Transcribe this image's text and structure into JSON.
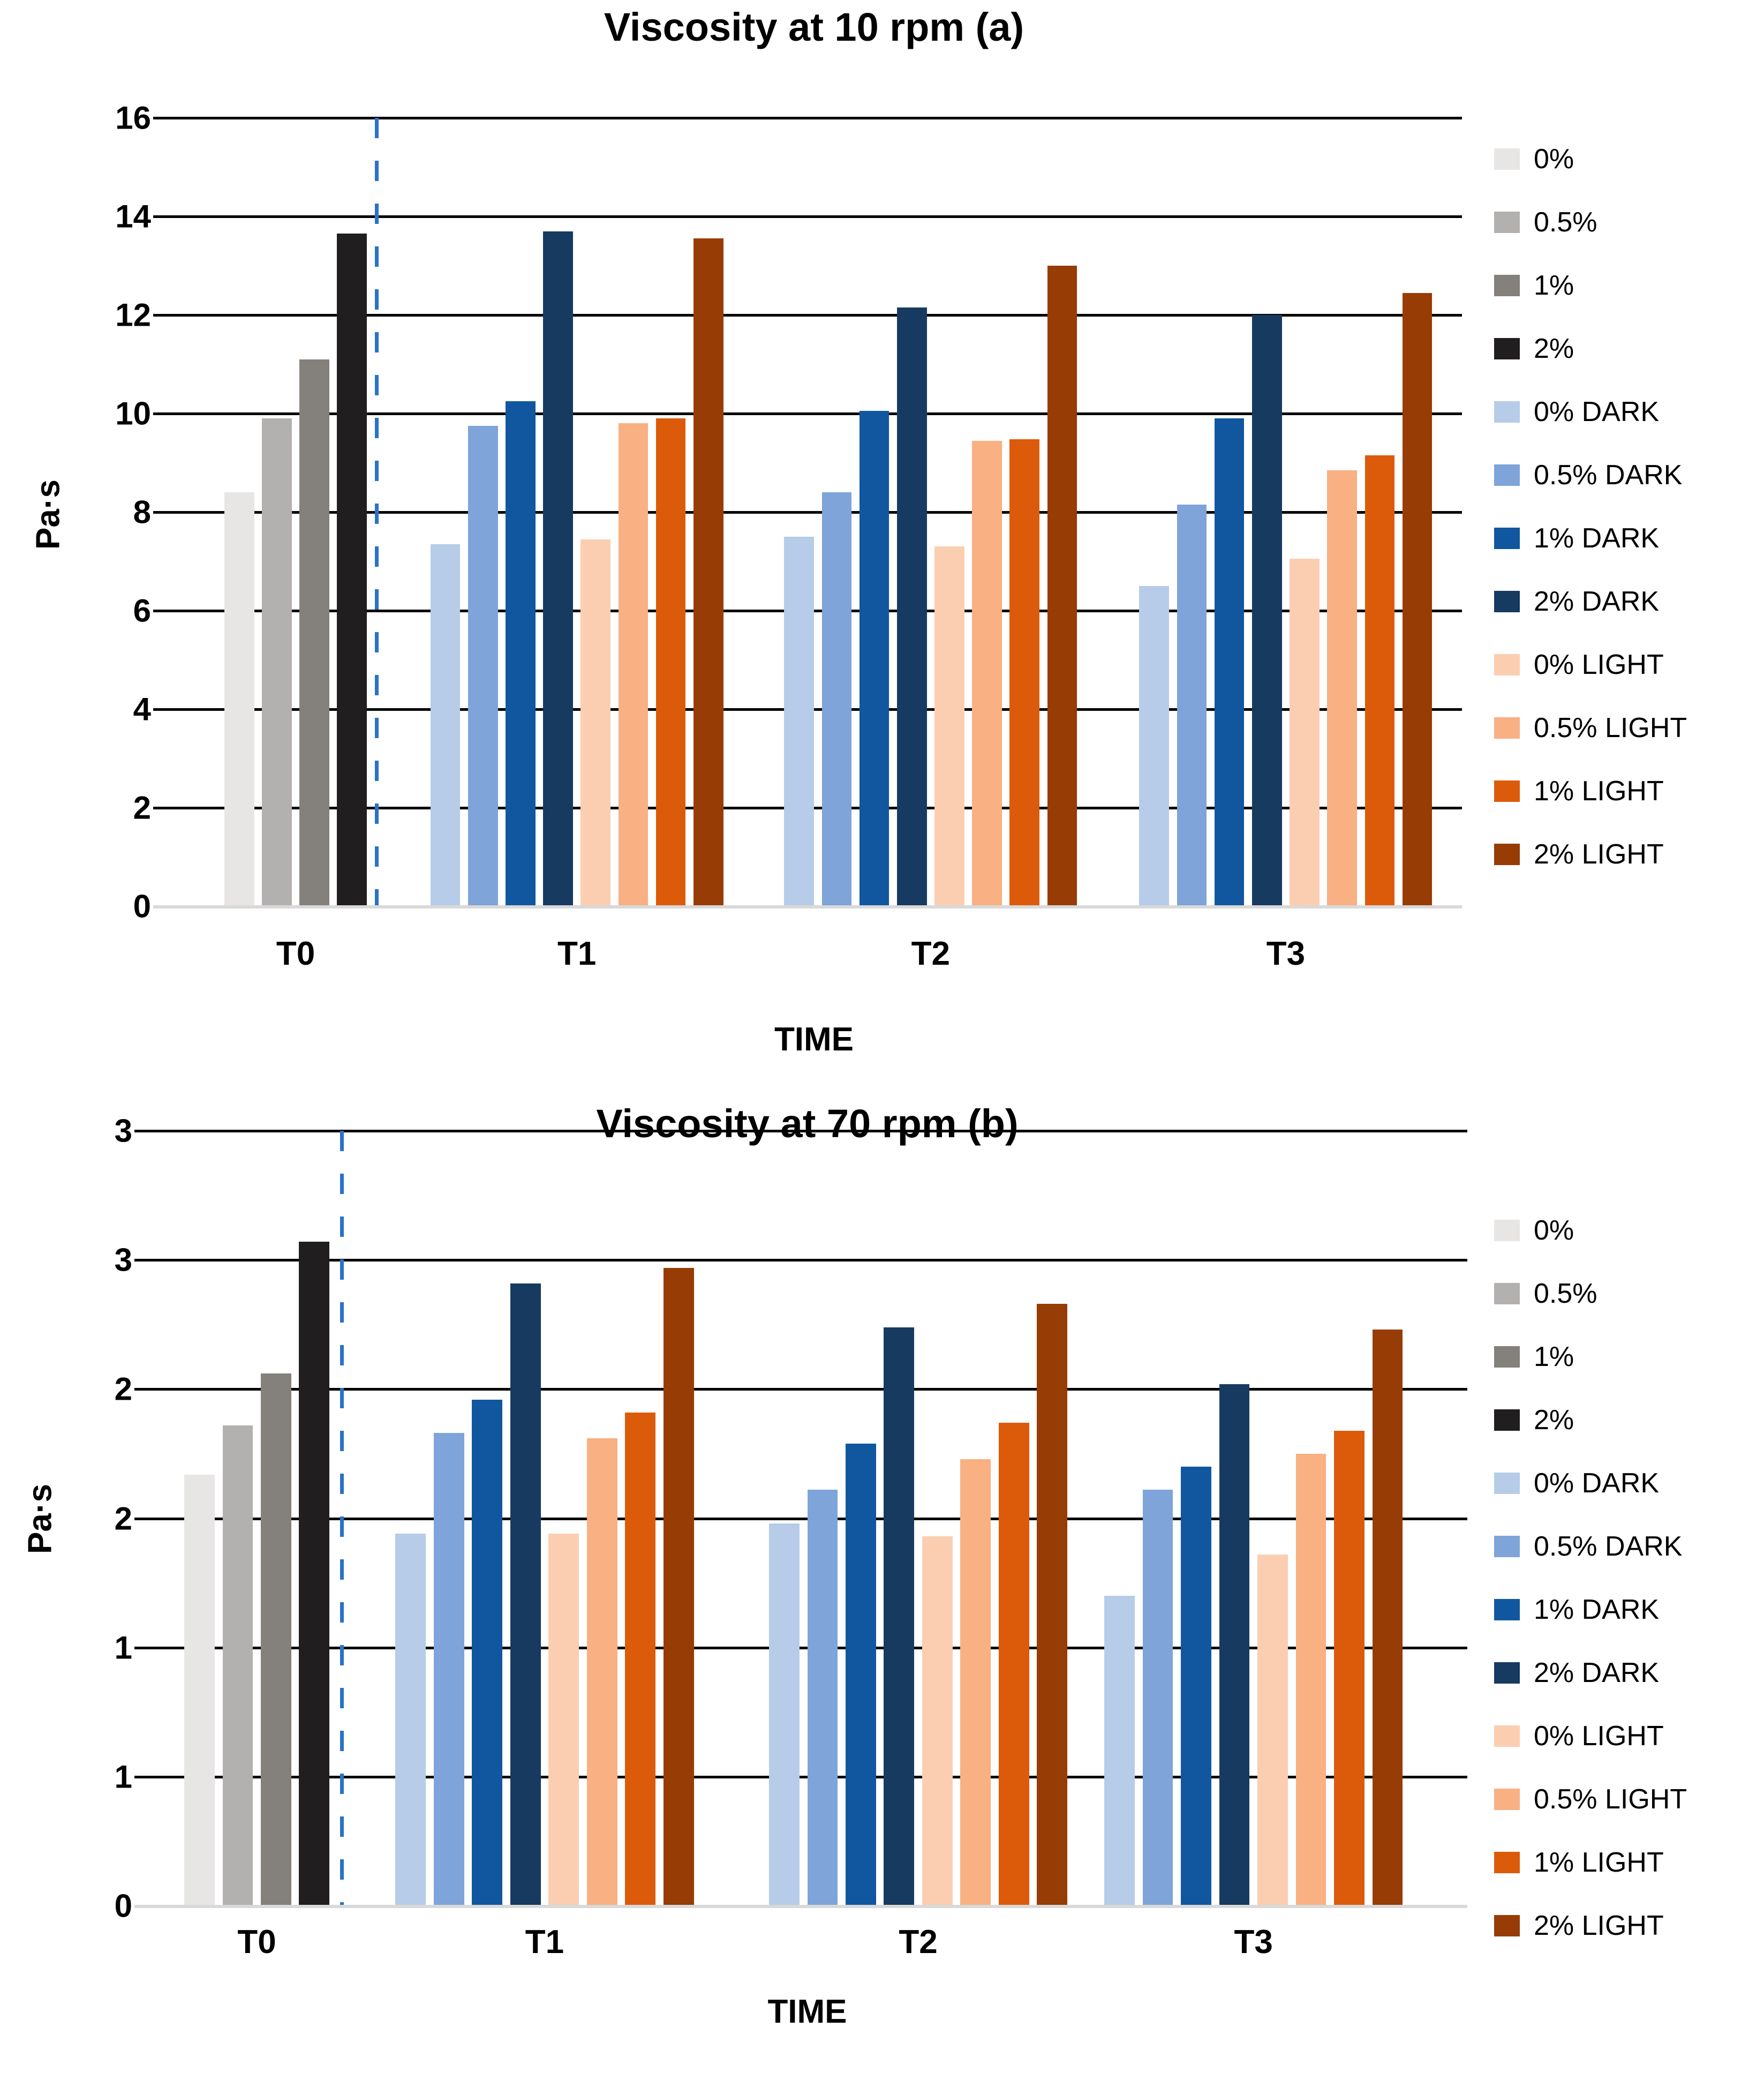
{
  "figure": {
    "panels": [
      "a",
      "b"
    ]
  },
  "colors": {
    "gridline": "#000000",
    "baseline": "#d9d9d9",
    "dashed_separator": "#2a72c8",
    "background": "#ffffff"
  },
  "chart_data": [
    {
      "type": "bar",
      "title": "Viscosity at 10 rpm (a)",
      "ylabel": "Pa·s",
      "xlabel": "TIME",
      "categories": [
        "T0",
        "T1",
        "T2",
        "T3"
      ],
      "ylim": [
        0,
        16
      ],
      "ytick_labels": [
        "16",
        "14",
        "12",
        "10",
        "8",
        "6",
        "4",
        "2",
        "0"
      ],
      "grid": true,
      "legend_position": "right",
      "annotations": [
        {
          "type": "vline-dashed",
          "after_category": "T0",
          "color": "#2a72c8"
        }
      ],
      "series": [
        {
          "name": "0%",
          "color": "#e7e6e4",
          "values": [
            8.4,
            null,
            null,
            null
          ]
        },
        {
          "name": "0.5%",
          "color": "#b3b1af",
          "values": [
            9.9,
            null,
            null,
            null
          ]
        },
        {
          "name": "1%",
          "color": "#84807b",
          "values": [
            11.1,
            null,
            null,
            null
          ]
        },
        {
          "name": "2%",
          "color": "#201e1e",
          "values": [
            13.65,
            null,
            null,
            null
          ]
        },
        {
          "name": "0% DARK",
          "color": "#b6cce8",
          "values": [
            null,
            7.35,
            7.5,
            6.5
          ]
        },
        {
          "name": "0.5% DARK",
          "color": "#7ea4d9",
          "values": [
            null,
            9.75,
            8.4,
            8.15
          ]
        },
        {
          "name": "1% DARK",
          "color": "#1057a0",
          "values": [
            null,
            10.25,
            10.05,
            9.9
          ]
        },
        {
          "name": "2% DARK",
          "color": "#173a60",
          "values": [
            null,
            13.7,
            12.15,
            12.0
          ]
        },
        {
          "name": "0% LIGHT",
          "color": "#fbceb1",
          "values": [
            null,
            7.45,
            7.3,
            7.05
          ]
        },
        {
          "name": "0.5% LIGHT",
          "color": "#f9b083",
          "values": [
            null,
            9.8,
            9.45,
            8.85
          ]
        },
        {
          "name": "1% LIGHT",
          "color": "#dc5b0b",
          "values": [
            null,
            9.9,
            9.48,
            9.15
          ]
        },
        {
          "name": "2% LIGHT",
          "color": "#973c04",
          "values": [
            null,
            13.55,
            13.0,
            12.45
          ]
        }
      ]
    },
    {
      "type": "bar",
      "title": "Viscosity at 70 rpm (b)",
      "ylabel": "Pa·s",
      "xlabel": "TIME",
      "categories": [
        "T0",
        "T1",
        "T2",
        "T3"
      ],
      "ylim": [
        0,
        3
      ],
      "ytick_labels": [
        "3",
        "3",
        "2",
        "2",
        "1",
        "1",
        "0"
      ],
      "grid": true,
      "legend_position": "right",
      "annotations": [
        {
          "type": "vline-dashed",
          "after_category": "T0",
          "color": "#2a72c8"
        }
      ],
      "series": [
        {
          "name": "0%",
          "color": "#e7e6e4",
          "values": [
            1.67,
            null,
            null,
            null
          ]
        },
        {
          "name": "0.5%",
          "color": "#b3b1af",
          "values": [
            1.86,
            null,
            null,
            null
          ]
        },
        {
          "name": "1%",
          "color": "#84807b",
          "values": [
            2.06,
            null,
            null,
            null
          ]
        },
        {
          "name": "2%",
          "color": "#201e1e",
          "values": [
            2.57,
            null,
            null,
            null
          ]
        },
        {
          "name": "0% DARK",
          "color": "#b6cce8",
          "values": [
            null,
            1.44,
            1.48,
            1.2
          ]
        },
        {
          "name": "0.5% DARK",
          "color": "#7ea4d9",
          "values": [
            null,
            1.83,
            1.61,
            1.61
          ]
        },
        {
          "name": "1% DARK",
          "color": "#1057a0",
          "values": [
            null,
            1.96,
            1.79,
            1.7
          ]
        },
        {
          "name": "2% DARK",
          "color": "#173a60",
          "values": [
            null,
            2.41,
            2.24,
            2.02
          ]
        },
        {
          "name": "0% LIGHT",
          "color": "#fbceb1",
          "values": [
            null,
            1.44,
            1.43,
            1.36
          ]
        },
        {
          "name": "0.5% LIGHT",
          "color": "#f9b083",
          "values": [
            null,
            1.81,
            1.73,
            1.75
          ]
        },
        {
          "name": "1% LIGHT",
          "color": "#dc5b0b",
          "values": [
            null,
            1.91,
            1.87,
            1.84
          ]
        },
        {
          "name": "2% LIGHT",
          "color": "#973c04",
          "values": [
            null,
            2.47,
            2.33,
            2.23
          ]
        }
      ]
    }
  ]
}
